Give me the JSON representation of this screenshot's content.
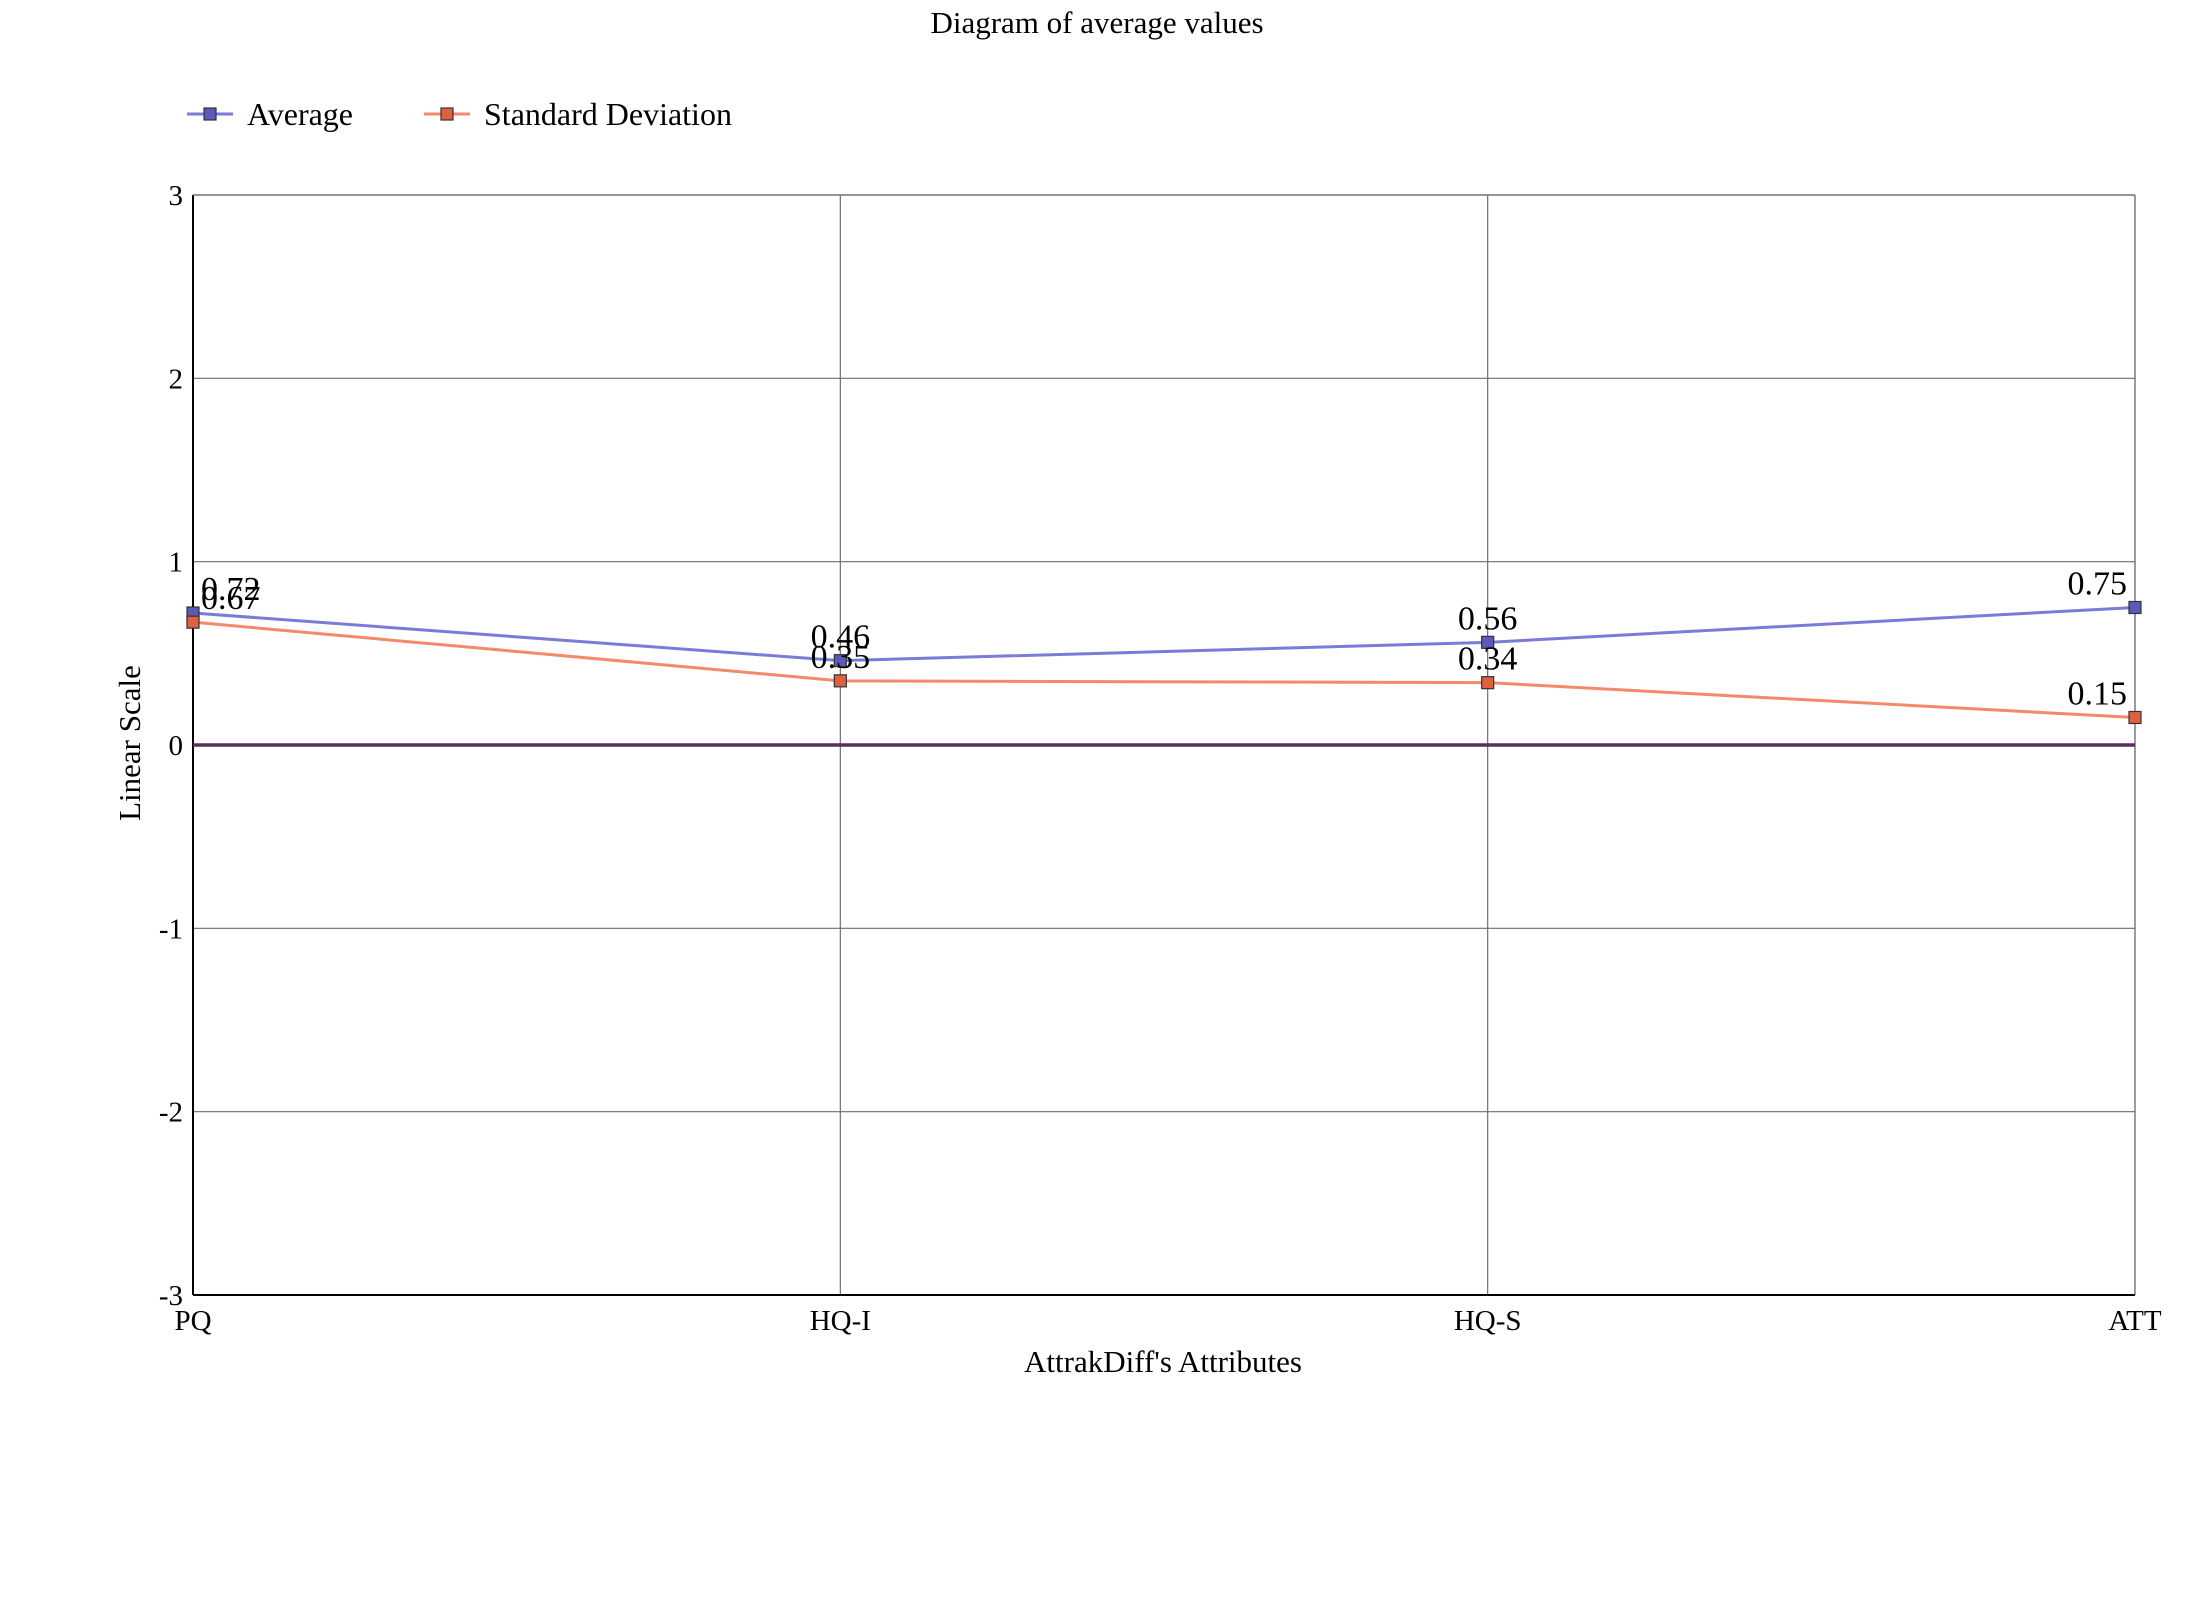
{
  "chart_data": {
    "type": "line",
    "title": "Diagram of average values",
    "xlabel": "AttrakDiff's Attributes",
    "ylabel": "Linear Scale",
    "categories": [
      "PQ",
      "HQ-I",
      "HQ-S",
      "ATT"
    ],
    "ylim": [
      -3,
      3
    ],
    "yticks": [
      "3",
      "2",
      "1",
      "0",
      "-1",
      "-2",
      "-3"
    ],
    "grid": true,
    "legend_position": "top-left",
    "series": [
      {
        "name": "Average",
        "values": [
          0.72,
          0.46,
          0.56,
          0.75
        ],
        "labels": [
          "0.72",
          "0.46",
          "0.56",
          "0.75"
        ],
        "color": "#7b7bd8",
        "marker_color": "#5a5ab8"
      },
      {
        "name": "Standard Deviation",
        "values": [
          0.67,
          0.35,
          0.34,
          0.15
        ],
        "labels": [
          "0.67",
          "0.35",
          "0.34",
          "0.15"
        ],
        "color": "#f4896b",
        "marker_color": "#e0613f"
      }
    ],
    "zero_line_color": "#5a2d5e"
  }
}
